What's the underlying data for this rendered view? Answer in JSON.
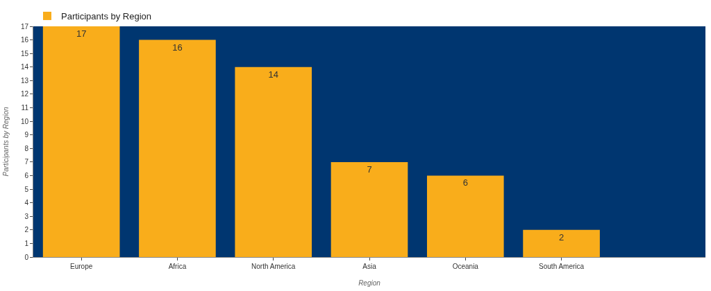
{
  "chart_data": {
    "type": "bar",
    "xlabel": "Region",
    "ylabel": "Participants by Region",
    "categories": [
      "Europe",
      "Africa",
      "North America",
      "Asia",
      "Oceania",
      "South America",
      null
    ],
    "series": [
      {
        "name": "Participants by Region",
        "color": "#f9ad1b",
        "values": [
          17,
          16,
          14,
          7,
          6,
          2,
          null
        ]
      }
    ],
    "ylim": [
      0,
      17
    ],
    "yticks": [
      0,
      1,
      2,
      3,
      4,
      5,
      6,
      7,
      8,
      9,
      10,
      11,
      12,
      13,
      14,
      15,
      16,
      17
    ],
    "data_labels": true,
    "legend": "top left",
    "grid": false
  }
}
